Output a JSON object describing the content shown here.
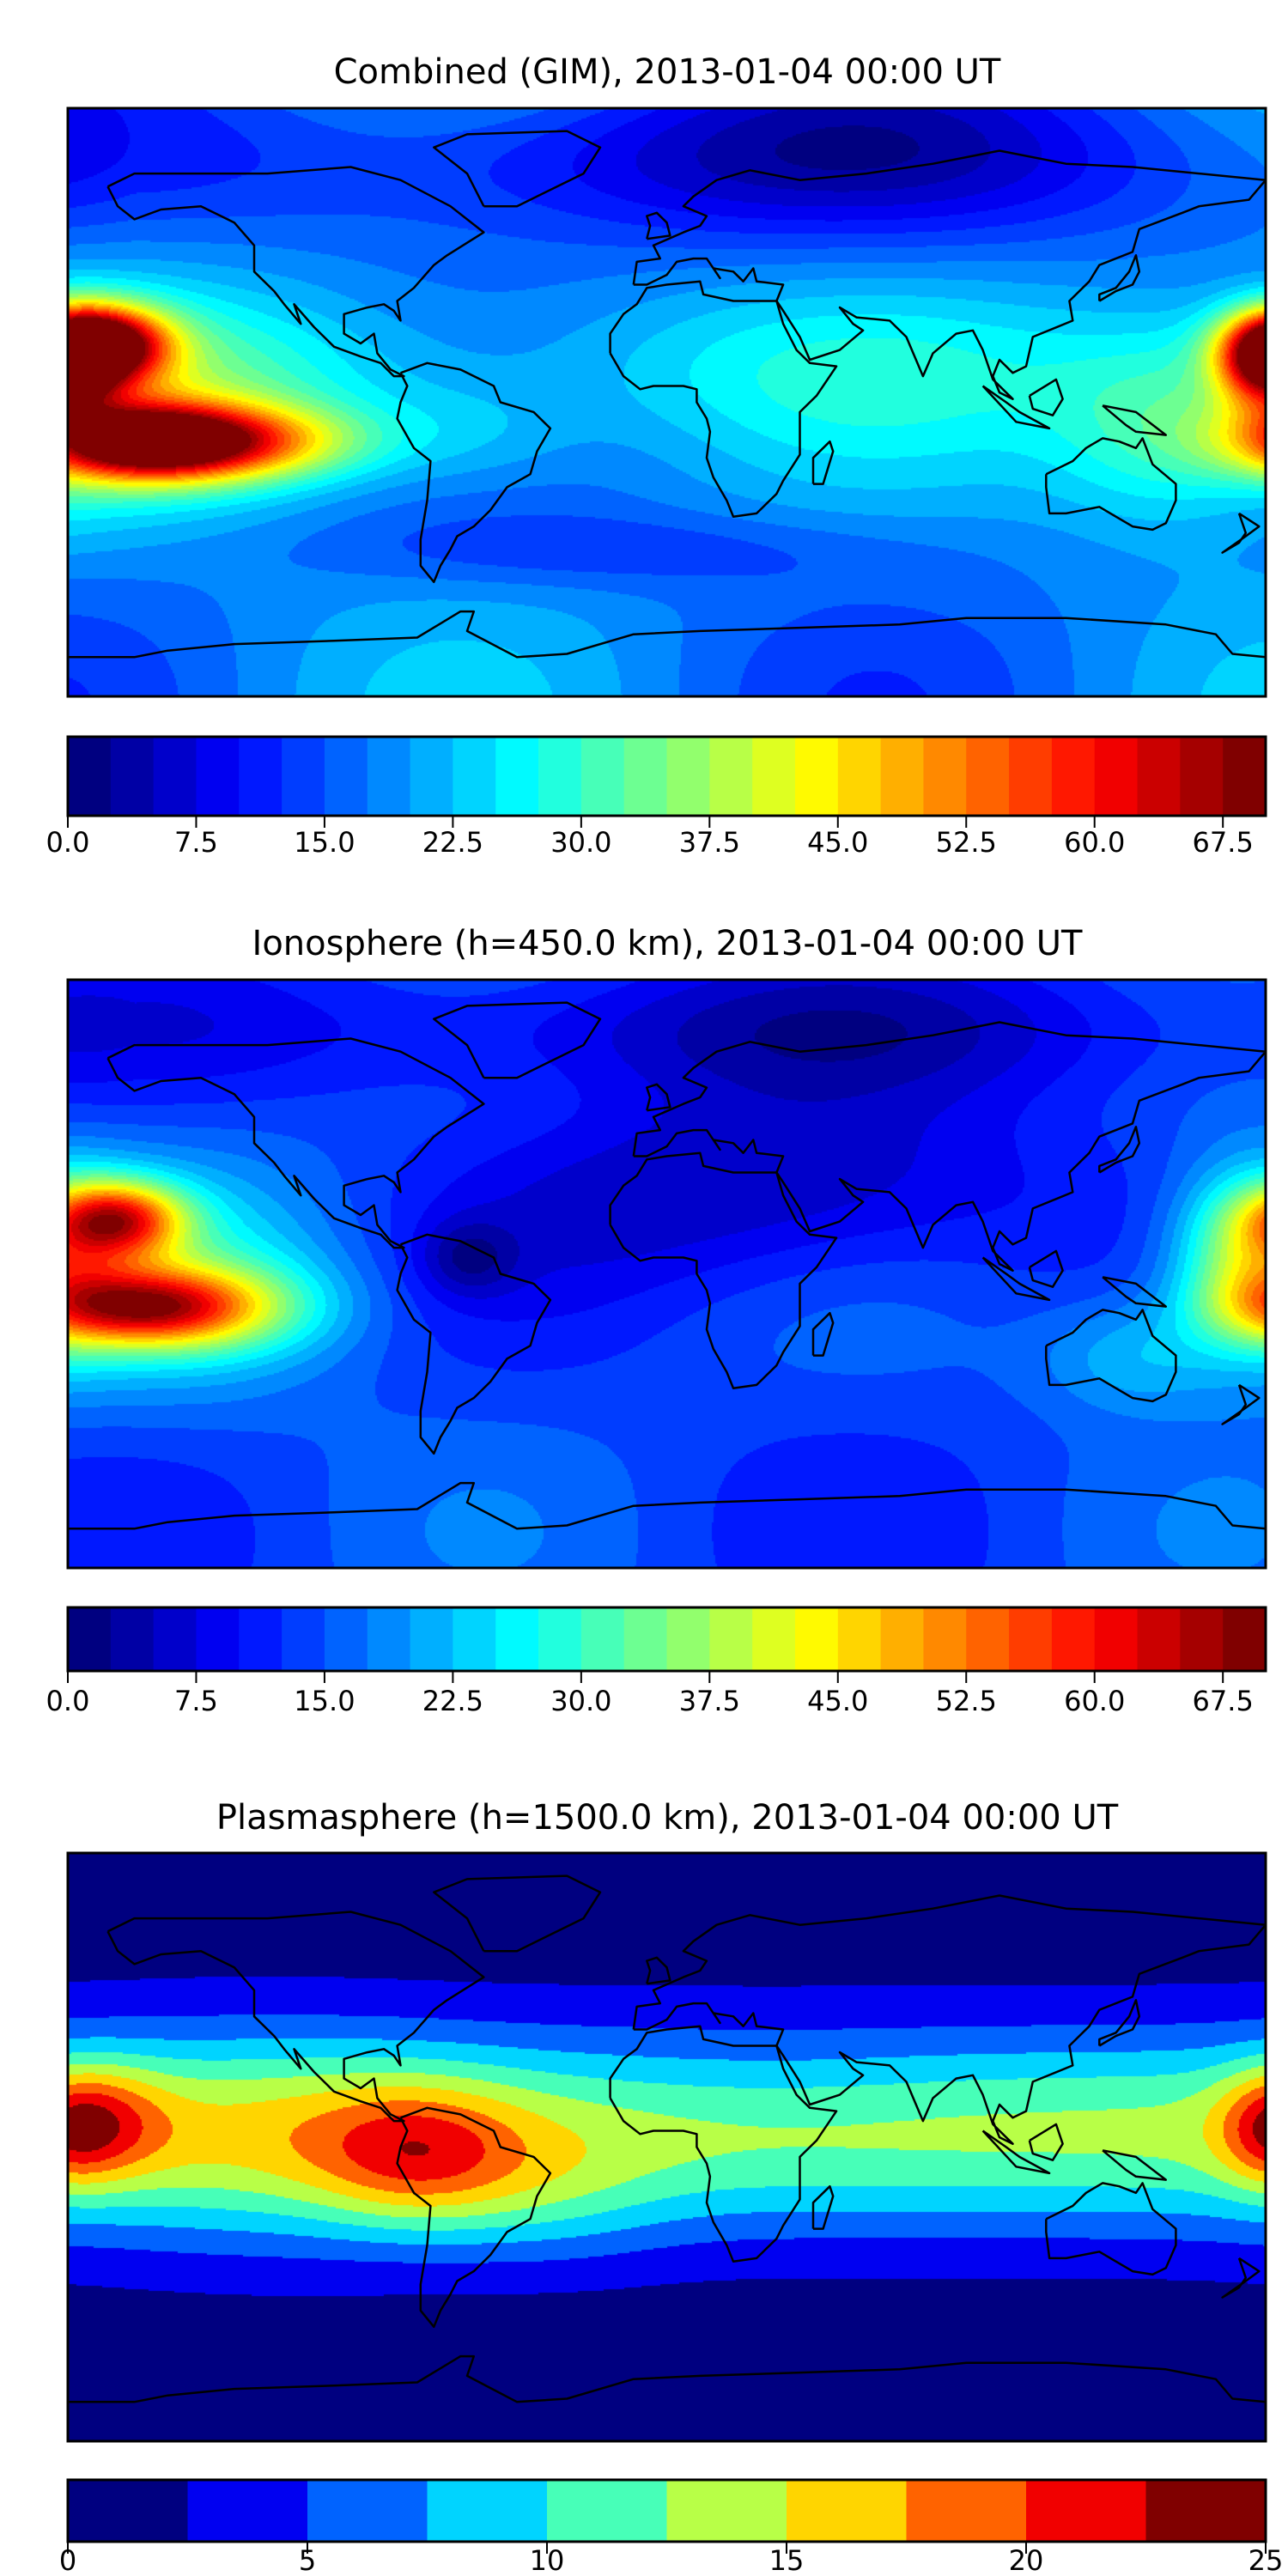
{
  "panels": [
    {
      "title": "Combined (GIM), 2013-01-04 00:00 UT",
      "colorbar": {
        "min": 0,
        "max": 70,
        "step": 2.5,
        "ticks": [
          "0.0",
          "7.5",
          "15.0",
          "22.5",
          "30.0",
          "37.5",
          "45.0",
          "52.5",
          "60.0",
          "67.5"
        ],
        "tick_values": [
          0,
          7.5,
          15,
          22.5,
          30,
          37.5,
          45,
          52.5,
          60,
          67.5
        ]
      }
    },
    {
      "title": "Ionosphere  (h=450.0 km), 2013-01-04 00:00 UT",
      "colorbar": {
        "min": 0,
        "max": 70,
        "step": 2.5,
        "ticks": [
          "0.0",
          "7.5",
          "15.0",
          "22.5",
          "30.0",
          "37.5",
          "45.0",
          "52.5",
          "60.0",
          "67.5"
        ],
        "tick_values": [
          0,
          7.5,
          15,
          22.5,
          30,
          37.5,
          45,
          52.5,
          60,
          67.5
        ]
      }
    },
    {
      "title": "Plasmasphere (h=1500.0 km), 2013-01-04 00:00 UT",
      "colorbar": {
        "min": 0,
        "max": 25,
        "step": 2.5,
        "ticks": [
          "0",
          "5",
          "10",
          "15",
          "20",
          "25"
        ],
        "tick_values": [
          0,
          5,
          10,
          15,
          20,
          25
        ]
      }
    }
  ],
  "colormap": "jet"
}
